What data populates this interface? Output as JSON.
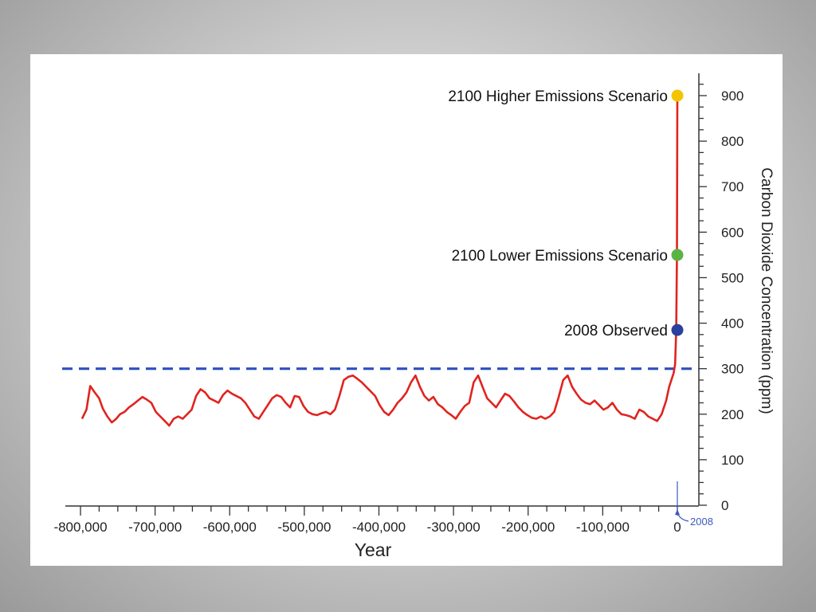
{
  "chart_data": {
    "type": "line",
    "xlabel": "Year",
    "ylabel": "Carbon Dioxide Concentration (ppm)",
    "xlim": [
      -800000,
      0
    ],
    "ylim": [
      0,
      900
    ],
    "x_ticks": [
      -800000,
      -700000,
      -600000,
      -500000,
      -400000,
      -300000,
      -200000,
      -100000,
      0
    ],
    "x_tick_labels": [
      "-800,000",
      "-700,000",
      "-600,000",
      "-500,000",
      "-400,000",
      "-300,000",
      "-200,000",
      "-100,000",
      "0"
    ],
    "y_ticks": [
      0,
      100,
      200,
      300,
      400,
      500,
      600,
      700,
      800,
      900
    ],
    "y_tick_labels": [
      "0",
      "100",
      "200",
      "300",
      "400",
      "500",
      "600",
      "700",
      "800",
      "900"
    ],
    "y_axis_position": "right",
    "grid": false,
    "reference_line": {
      "value": 300,
      "style": "dashed",
      "color": "#2f4fbf"
    },
    "series": [
      {
        "color": "#e0241f",
        "x": [
          -798000,
          -792000,
          -787000,
          -781000,
          -775000,
          -770000,
          -764000,
          -758000,
          -752000,
          -747000,
          -741000,
          -735000,
          -729000,
          -723000,
          -717000,
          -711000,
          -705000,
          -699000,
          -693000,
          -687000,
          -681000,
          -675000,
          -669000,
          -663000,
          -657000,
          -651000,
          -645000,
          -639000,
          -633000,
          -627000,
          -621000,
          -615000,
          -609000,
          -603000,
          -597000,
          -591000,
          -585000,
          -579000,
          -573000,
          -567000,
          -561000,
          -555000,
          -549000,
          -543000,
          -537000,
          -531000,
          -525000,
          -519000,
          -513000,
          -507000,
          -501000,
          -495000,
          -489000,
          -483000,
          -477000,
          -471000,
          -465000,
          -459000,
          -453000,
          -447000,
          -441000,
          -435000,
          -429000,
          -423000,
          -417000,
          -411000,
          -405000,
          -399000,
          -393000,
          -387000,
          -381000,
          -375000,
          -369000,
          -363000,
          -357000,
          -351000,
          -345000,
          -339000,
          -333000,
          -327000,
          -321000,
          -315000,
          -309000,
          -303000,
          -297000,
          -291000,
          -285000,
          -279000,
          -273000,
          -267000,
          -261000,
          -255000,
          -249000,
          -243000,
          -237000,
          -231000,
          -225000,
          -219000,
          -213000,
          -207000,
          -201000,
          -195000,
          -189000,
          -183000,
          -177000,
          -171000,
          -165000,
          -159000,
          -153000,
          -147000,
          -141000,
          -135000,
          -129000,
          -123000,
          -117000,
          -111000,
          -105000,
          -99000,
          -93000,
          -87000,
          -81000,
          -75000,
          -69000,
          -63000,
          -57000,
          -51000,
          -45000,
          -39000,
          -33000,
          -27000,
          -21000,
          -15000,
          -11000,
          -8000,
          -5000,
          -3000,
          -1500,
          -500,
          0
        ],
        "y": [
          190,
          210,
          262,
          248,
          235,
          212,
          195,
          182,
          190,
          200,
          205,
          215,
          222,
          230,
          238,
          232,
          225,
          205,
          195,
          185,
          175,
          190,
          195,
          190,
          200,
          210,
          240,
          255,
          248,
          235,
          230,
          225,
          242,
          252,
          245,
          240,
          235,
          225,
          210,
          195,
          190,
          205,
          220,
          235,
          242,
          238,
          225,
          215,
          240,
          238,
          218,
          205,
          200,
          198,
          202,
          205,
          200,
          210,
          240,
          275,
          282,
          285,
          278,
          270,
          260,
          250,
          240,
          220,
          205,
          198,
          210,
          225,
          235,
          248,
          270,
          285,
          260,
          240,
          230,
          238,
          222,
          215,
          205,
          198,
          190,
          205,
          218,
          225,
          270,
          285,
          260,
          235,
          225,
          215,
          230,
          245,
          240,
          228,
          215,
          205,
          198,
          192,
          190,
          195,
          190,
          195,
          205,
          238,
          275,
          285,
          260,
          245,
          232,
          225,
          222,
          230,
          220,
          210,
          215,
          225,
          210,
          200,
          198,
          195,
          190,
          210,
          205,
          195,
          190,
          185,
          200,
          230,
          260,
          275,
          290,
          310,
          385,
          550,
          900
        ]
      }
    ],
    "annotations": [
      {
        "label": "2100 Higher Emissions Scenario",
        "value": 900,
        "color": "#f5c400"
      },
      {
        "label": "2100 Lower Emissions Scenario",
        "value": 550,
        "color": "#5ab445"
      },
      {
        "label": "2008 Observed",
        "value": 385,
        "color": "#2a3f9e"
      }
    ],
    "marker_label": {
      "text": "2008",
      "color": "#3a5ac0"
    }
  }
}
